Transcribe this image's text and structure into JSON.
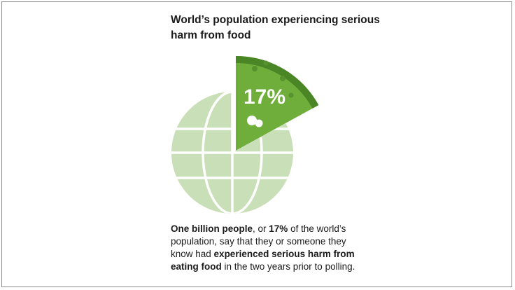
{
  "chart_data": {
    "type": "pie",
    "title": "World’s population experiencing serious harm from food",
    "slices": [
      {
        "label": "17%",
        "value": 17
      },
      {
        "label": "",
        "value": 83
      }
    ]
  },
  "colors": {
    "globe": "#c9dfb7",
    "slice_fill": "#6fae3b",
    "slice_rind": "#4a8526",
    "slice_spots": "#58922e",
    "background": "#ffffff"
  },
  "description": {
    "part1": "One billion people",
    "part2": ", or ",
    "part3": "17%",
    "part4": " of the world’s population, say that they or someone they know had ",
    "part5": "experienced serious harm from eating food",
    "part6": " in the two years prior to polling."
  }
}
